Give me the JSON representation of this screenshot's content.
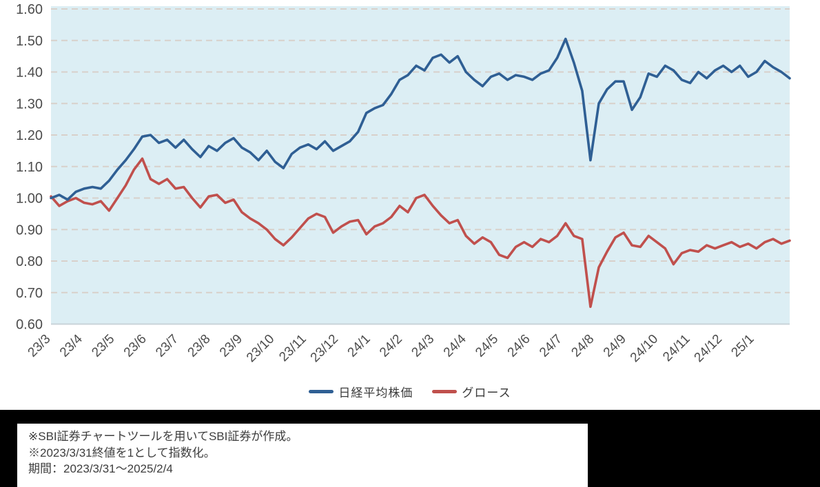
{
  "colors": {
    "plot_bg": "#dceef4",
    "gridline": "#d8d0ca",
    "baseline": "#c9d3d8",
    "axis_text": "#4c4c4c",
    "legend_text": "#3a3a3a",
    "note_panel_bg": "#000000",
    "note_box_bg": "#ffffff",
    "note_text": "#3d3d3d"
  },
  "chart_data": {
    "type": "line",
    "title": "",
    "xlabel": "",
    "ylabel": "",
    "ylim": [
      0.6,
      1.61
    ],
    "y_tick_labels": [
      "0.60",
      "0.70",
      "0.80",
      "0.90",
      "1.00",
      "1.10",
      "1.20",
      "1.30",
      "1.40",
      "1.50",
      "1.60"
    ],
    "x_tick_labels": [
      "23/3",
      "23/4",
      "23/5",
      "23/6",
      "23/7",
      "23/8",
      "23/9",
      "23/10",
      "23/11",
      "23/12",
      "24/1",
      "24/2",
      "24/3",
      "24/4",
      "24/5",
      "24/6",
      "24/7",
      "24/8",
      "24/9",
      "24/10",
      "24/11",
      "24/12",
      "25/1"
    ],
    "x_months_total": 23.1,
    "grid": "horizontal-dashed",
    "legend_position": "bottom-center",
    "series": [
      {
        "key": "nikkei",
        "name": "日経平均株価",
        "color": "#2f5f94",
        "values": [
          1.0,
          1.01,
          0.995,
          1.02,
          1.03,
          1.035,
          1.03,
          1.055,
          1.09,
          1.12,
          1.155,
          1.195,
          1.2,
          1.175,
          1.185,
          1.16,
          1.185,
          1.155,
          1.13,
          1.165,
          1.15,
          1.175,
          1.19,
          1.16,
          1.145,
          1.12,
          1.15,
          1.115,
          1.095,
          1.14,
          1.16,
          1.17,
          1.155,
          1.18,
          1.15,
          1.165,
          1.18,
          1.21,
          1.27,
          1.285,
          1.295,
          1.33,
          1.375,
          1.39,
          1.42,
          1.405,
          1.445,
          1.455,
          1.43,
          1.45,
          1.4,
          1.375,
          1.355,
          1.385,
          1.395,
          1.375,
          1.39,
          1.385,
          1.375,
          1.395,
          1.405,
          1.445,
          1.505,
          1.43,
          1.34,
          1.12,
          1.3,
          1.345,
          1.37,
          1.37,
          1.28,
          1.32,
          1.395,
          1.385,
          1.42,
          1.405,
          1.375,
          1.365,
          1.4,
          1.38,
          1.405,
          1.42,
          1.4,
          1.42,
          1.385,
          1.4,
          1.435,
          1.415,
          1.4,
          1.38
        ]
      },
      {
        "key": "growth",
        "name": "グロース",
        "color": "#c0504d",
        "values": [
          1.005,
          0.975,
          0.99,
          1.0,
          0.985,
          0.98,
          0.99,
          0.96,
          1.0,
          1.04,
          1.09,
          1.125,
          1.06,
          1.045,
          1.06,
          1.03,
          1.035,
          1.0,
          0.97,
          1.005,
          1.01,
          0.985,
          0.995,
          0.955,
          0.935,
          0.92,
          0.9,
          0.87,
          0.85,
          0.875,
          0.905,
          0.935,
          0.95,
          0.94,
          0.89,
          0.91,
          0.925,
          0.93,
          0.885,
          0.91,
          0.92,
          0.94,
          0.975,
          0.955,
          1.0,
          1.01,
          0.975,
          0.945,
          0.92,
          0.93,
          0.88,
          0.855,
          0.875,
          0.86,
          0.82,
          0.81,
          0.845,
          0.86,
          0.845,
          0.87,
          0.86,
          0.88,
          0.92,
          0.88,
          0.87,
          0.655,
          0.78,
          0.83,
          0.875,
          0.89,
          0.85,
          0.845,
          0.88,
          0.86,
          0.84,
          0.79,
          0.825,
          0.835,
          0.83,
          0.85,
          0.84,
          0.85,
          0.86,
          0.845,
          0.855,
          0.84,
          0.86,
          0.87,
          0.855,
          0.865
        ]
      }
    ]
  },
  "footnote": {
    "lines": [
      "※SBI証券チャートツールを用いてSBI証券が作成。",
      "※2023/3/31終値を1として指数化。",
      "期間：2023/3/31～2025/2/4"
    ]
  }
}
